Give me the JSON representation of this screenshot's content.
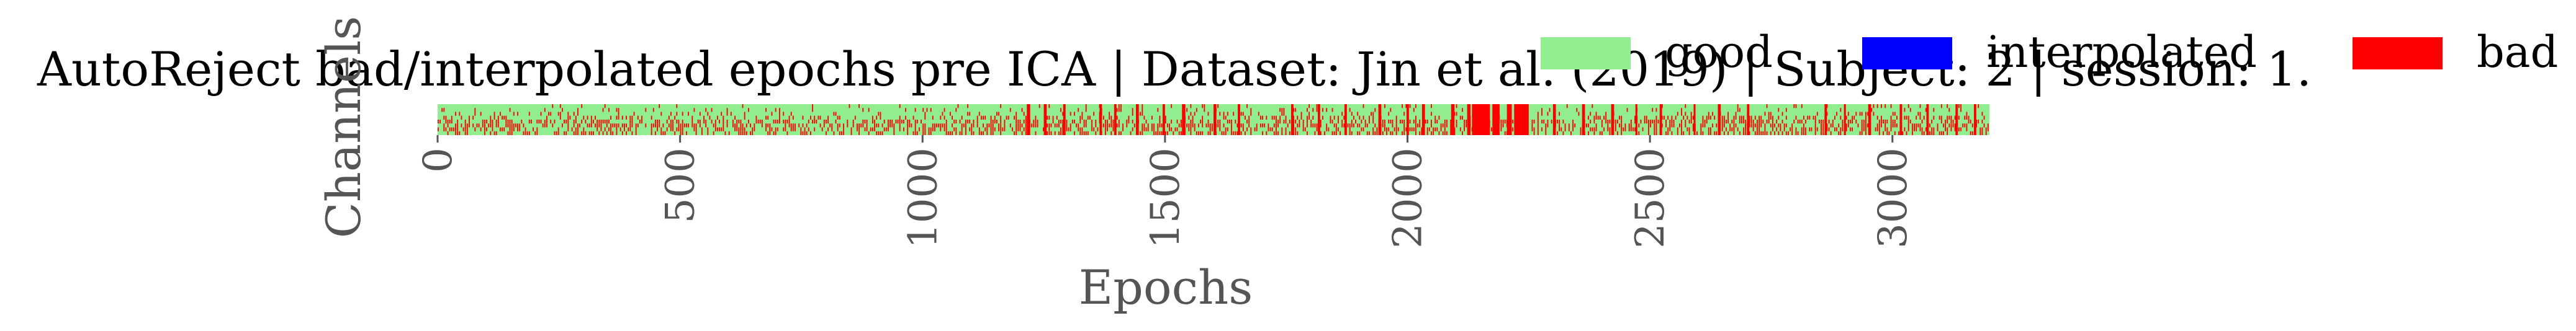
{
  "chart_data": {
    "type": "heatmap",
    "title": "AutoReject bad/interpolated epochs pre ICA | Dataset: Jin et al. (2019) | Subject: 2 | session: 1.",
    "xlabel": "Epochs",
    "ylabel": "Channels",
    "x_ticks": [
      0,
      500,
      1000,
      1500,
      2000,
      2500,
      3000
    ],
    "xlim": [
      0,
      3200
    ],
    "n_epochs": 3200,
    "n_channels": 8,
    "legend": [
      {
        "label": "good",
        "color": "#90ee90"
      },
      {
        "label": "interpolated",
        "color": "#0000ff"
      },
      {
        "label": "bad",
        "color": "#ff0000"
      }
    ],
    "fully_bad_epoch_ranges": [
      [
        1215,
        1222
      ],
      [
        1250,
        1256
      ],
      [
        1290,
        1295
      ],
      [
        1365,
        1370
      ],
      [
        1395,
        1400
      ],
      [
        1440,
        1446
      ],
      [
        1495,
        1500
      ],
      [
        1535,
        1542
      ],
      [
        1600,
        1606
      ],
      [
        1650,
        1655
      ],
      [
        1760,
        1765
      ],
      [
        1815,
        1820
      ],
      [
        1870,
        1875
      ],
      [
        1940,
        1946
      ],
      [
        1998,
        2003
      ],
      [
        2030,
        2036
      ],
      [
        2090,
        2097
      ],
      [
        2123,
        2130
      ],
      [
        2133,
        2170
      ],
      [
        2175,
        2190
      ],
      [
        2205,
        2215
      ],
      [
        2220,
        2250
      ],
      [
        2300,
        2306
      ],
      [
        2360,
        2366
      ],
      [
        2420,
        2426
      ],
      [
        2470,
        2474
      ],
      [
        2520,
        2525
      ],
      [
        2590,
        2594
      ],
      [
        2640,
        2646
      ],
      [
        2700,
        2705
      ],
      [
        2860,
        2865
      ],
      [
        2900,
        2904
      ],
      [
        2950,
        2956
      ],
      [
        3015,
        3020
      ],
      [
        3070,
        3075
      ],
      [
        3130,
        3135
      ],
      [
        3168,
        3173
      ]
    ],
    "scattered_bad_fraction_by_channel": [
      0.08,
      0.1,
      0.14,
      0.3,
      0.45,
      0.5,
      0.45,
      0.4
    ]
  }
}
